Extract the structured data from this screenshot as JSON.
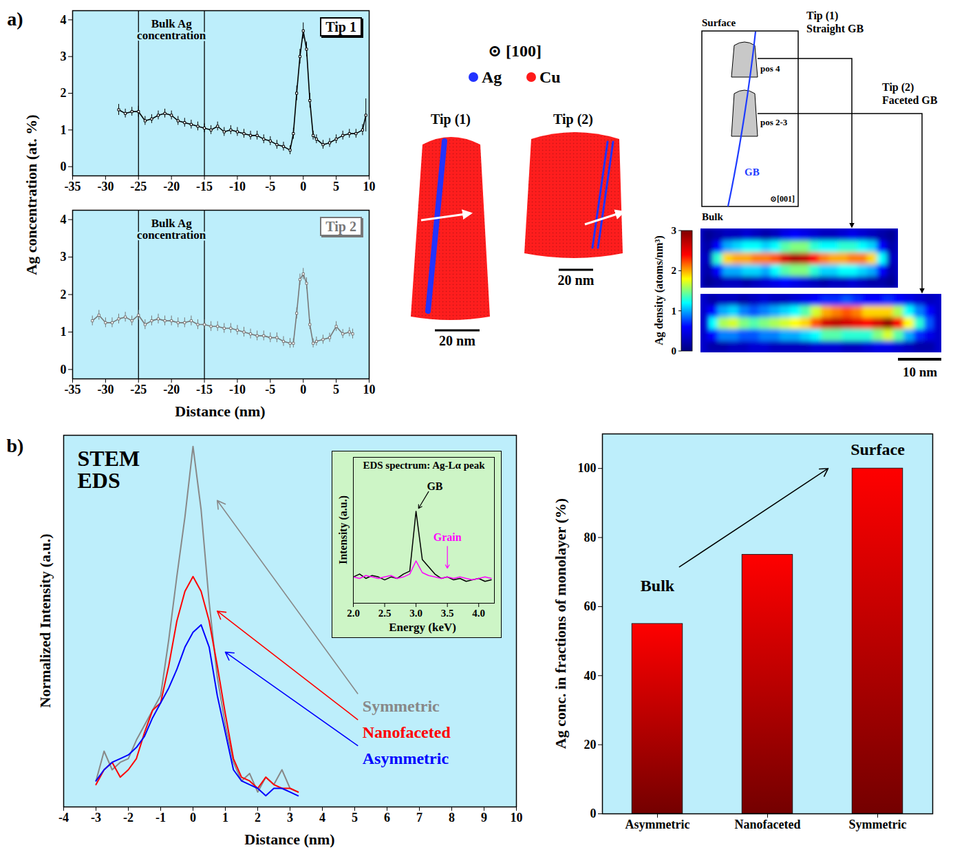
{
  "panel_labels": [
    "a)",
    "b)"
  ],
  "chart_data": [
    {
      "type": "line",
      "title": "Tip 1",
      "y_label": "Ag concentration (at. %)",
      "annotation": "Bulk Ag concentration",
      "reference_x": [
        -25,
        -15
      ],
      "color": "#000000",
      "marker": "square",
      "x": [
        -28,
        -27,
        -26,
        -25,
        -24,
        -23,
        -22,
        -21,
        -20,
        -19,
        -18,
        -17,
        -16,
        -15,
        -14,
        -13,
        -12,
        -11,
        -10,
        -9,
        -8,
        -7,
        -6,
        -5,
        -4,
        -3,
        -2,
        -1.5,
        -1,
        -0.5,
        0,
        0.5,
        1,
        1.5,
        2,
        3,
        4,
        5,
        6,
        7,
        8,
        9,
        9.5
      ],
      "values": [
        1.55,
        1.45,
        1.5,
        1.5,
        1.25,
        1.3,
        1.4,
        1.45,
        1.4,
        1.25,
        1.2,
        1.15,
        1.1,
        1.05,
        1.0,
        1.1,
        0.95,
        1.0,
        0.95,
        0.9,
        0.85,
        0.85,
        0.75,
        0.7,
        0.6,
        0.55,
        0.45,
        0.9,
        2.0,
        3.0,
        3.7,
        3.2,
        1.8,
        0.85,
        0.75,
        0.6,
        0.65,
        0.75,
        0.85,
        0.9,
        0.9,
        1.0,
        1.4
      ],
      "errors": [
        0.15,
        0.12,
        0.12,
        0.15,
        0.12,
        0.12,
        0.12,
        0.12,
        0.12,
        0.12,
        0.12,
        0.12,
        0.12,
        0.12,
        0.12,
        0.12,
        0.12,
        0.12,
        0.12,
        0.12,
        0.12,
        0.12,
        0.12,
        0.12,
        0.12,
        0.12,
        0.12,
        0.15,
        0.2,
        0.2,
        0.22,
        0.2,
        0.2,
        0.12,
        0.12,
        0.12,
        0.12,
        0.12,
        0.12,
        0.12,
        0.12,
        0.15,
        0.45
      ],
      "xlim": [
        -35,
        10
      ],
      "xticks": [
        -35,
        -30,
        -25,
        -20,
        -15,
        -10,
        -5,
        0,
        5,
        10
      ],
      "ylim": [
        -0.25,
        4.25
      ],
      "yticks": [
        0,
        1,
        2,
        3,
        4
      ]
    },
    {
      "type": "line",
      "title": "Tip 2",
      "x_label": "Distance (nm)",
      "annotation": "Bulk Ag concentration",
      "reference_x": [
        -25,
        -15
      ],
      "color": "#777777",
      "marker": "square",
      "x": [
        -32,
        -31,
        -30,
        -29,
        -28,
        -27,
        -26,
        -25,
        -24,
        -23,
        -22,
        -21,
        -20,
        -19,
        -18,
        -17,
        -16,
        -15,
        -14,
        -13,
        -12,
        -11,
        -10,
        -9,
        -8,
        -7,
        -6,
        -5,
        -4,
        -3,
        -2,
        -1.5,
        -1,
        -0.5,
        0,
        0.5,
        1,
        1.5,
        2,
        3,
        4,
        5,
        6,
        7,
        7.5
      ],
      "values": [
        1.3,
        1.45,
        1.25,
        1.25,
        1.35,
        1.4,
        1.3,
        1.45,
        1.2,
        1.3,
        1.35,
        1.3,
        1.3,
        1.25,
        1.25,
        1.3,
        1.2,
        1.2,
        1.15,
        1.15,
        1.1,
        1.1,
        1.05,
        1.0,
        0.95,
        0.9,
        0.9,
        0.85,
        0.85,
        0.75,
        0.7,
        0.7,
        1.5,
        2.4,
        2.55,
        2.3,
        1.2,
        0.7,
        0.75,
        0.8,
        0.85,
        1.15,
        0.95,
        1.0,
        0.95
      ],
      "errors": [
        0.13,
        0.13,
        0.13,
        0.13,
        0.13,
        0.13,
        0.13,
        0.13,
        0.13,
        0.13,
        0.13,
        0.13,
        0.13,
        0.13,
        0.13,
        0.13,
        0.13,
        0.13,
        0.13,
        0.13,
        0.13,
        0.13,
        0.13,
        0.13,
        0.13,
        0.13,
        0.13,
        0.13,
        0.13,
        0.13,
        0.13,
        0.12,
        0.15,
        0.15,
        0.15,
        0.15,
        0.13,
        0.12,
        0.12,
        0.12,
        0.12,
        0.13,
        0.12,
        0.12,
        0.13
      ],
      "xlim": [
        -35,
        10
      ],
      "xticks": [
        -35,
        -30,
        -25,
        -20,
        -15,
        -10,
        -5,
        0,
        5,
        10
      ],
      "ylim": [
        -0.25,
        4.25
      ],
      "yticks": [
        0,
        1,
        2,
        3,
        4
      ]
    },
    {
      "type": "heatmap",
      "tick_labels": false,
      "panels": [
        {
          "cells": [
            [
              0.1,
              0.2,
              0.3,
              0.3,
              0.4,
              0.3,
              0.2,
              0.3,
              0.5,
              0.6,
              0.5,
              0.4,
              0.3,
              0.3,
              0.4,
              0.5,
              0.4,
              0.3,
              0.2,
              0.1
            ],
            [
              0.2,
              0.6,
              1.0,
              1.1,
              1.2,
              1.2,
              1.1,
              1.2,
              1.4,
              1.5,
              1.5,
              1.3,
              1.2,
              1.2,
              1.3,
              1.3,
              1.2,
              1.1,
              0.6,
              0.2
            ],
            [
              0.3,
              1.3,
              1.9,
              2.0,
              2.0,
              2.1,
              2.1,
              2.2,
              2.6,
              2.8,
              2.7,
              2.4,
              2.1,
              2.0,
              2.0,
              2.1,
              2.1,
              1.9,
              1.2,
              0.3
            ],
            [
              0.2,
              0.6,
              1.0,
              1.0,
              1.1,
              1.1,
              1.0,
              1.2,
              1.4,
              1.5,
              1.5,
              1.3,
              1.1,
              1.1,
              1.2,
              1.2,
              1.1,
              1.0,
              0.6,
              0.2
            ],
            [
              0.1,
              0.2,
              0.3,
              0.3,
              0.2,
              0.3,
              0.4,
              0.5,
              0.6,
              0.5,
              0.4,
              0.3,
              0.2,
              0.3,
              0.3,
              0.4,
              0.3,
              0.2,
              0.2,
              0.1
            ]
          ]
        },
        {
          "cells": [
            [
              0.2,
              0.3,
              0.3,
              0.2,
              0.3,
              0.4,
              0.3,
              0.3,
              0.4,
              0.5,
              0.6,
              0.7,
              0.7,
              0.8,
              0.7,
              0.6,
              0.6,
              0.7,
              0.6,
              0.5,
              0.4,
              0.3
            ],
            [
              0.6,
              1.0,
              1.1,
              0.9,
              0.8,
              0.9,
              1.0,
              1.1,
              1.2,
              1.4,
              1.7,
              2.0,
              2.1,
              2.2,
              2.1,
              1.9,
              1.9,
              1.9,
              1.6,
              1.2,
              0.9,
              0.6
            ],
            [
              1.2,
              1.6,
              1.7,
              1.5,
              1.4,
              1.5,
              1.6,
              1.7,
              1.8,
              1.9,
              2.2,
              2.6,
              2.7,
              2.6,
              2.5,
              2.4,
              2.6,
              2.9,
              2.4,
              1.8,
              1.3,
              0.8
            ],
            [
              0.6,
              0.9,
              0.9,
              0.8,
              0.8,
              0.9,
              0.9,
              1.0,
              1.0,
              1.1,
              1.2,
              1.4,
              1.4,
              1.3,
              1.3,
              1.3,
              1.5,
              1.7,
              1.4,
              1.0,
              0.7,
              0.5
            ],
            [
              0.2,
              0.2,
              0.3,
              0.3,
              0.4,
              0.4,
              0.3,
              0.3,
              0.3,
              0.3,
              0.4,
              0.4,
              0.4,
              0.3,
              0.3,
              0.4,
              0.5,
              0.5,
              0.4,
              0.3,
              0.2,
              0.2
            ]
          ]
        }
      ],
      "colorbar": {
        "label": "Ag density (atoms/nm³)",
        "range": [
          0,
          3
        ],
        "ticks": [
          0,
          1,
          2,
          3
        ]
      },
      "scale_bar": "10 nm"
    },
    {
      "type": "line",
      "title": "STEM EDS",
      "x_label": "Distance (nm)",
      "y_label": "Normalized Intensity (a.u.)",
      "tick_labels": "x",
      "x": [
        -3,
        -2.75,
        -2.5,
        -2.25,
        -2,
        -1.75,
        -1.5,
        -1.25,
        -1,
        -0.75,
        -0.5,
        -0.25,
        0,
        0.25,
        0.5,
        0.75,
        1,
        1.25,
        1.5,
        1.75,
        2,
        2.25,
        2.5,
        2.75,
        3,
        3.25
      ],
      "series": [
        {
          "name": "Symmetric",
          "color": "#888888",
          "values": [
            0.07,
            0.15,
            0.1,
            0.12,
            0.13,
            0.18,
            0.22,
            0.26,
            0.3,
            0.45,
            0.62,
            0.78,
            0.97,
            0.8,
            0.55,
            0.35,
            0.22,
            0.12,
            0.07,
            0.09,
            0.04,
            0.08,
            0.06,
            0.1,
            0.05,
            0.04
          ]
        },
        {
          "name": "Nanofaceted",
          "color": "#ff0000",
          "values": [
            0.06,
            0.1,
            0.12,
            0.08,
            0.1,
            0.13,
            0.2,
            0.26,
            0.28,
            0.38,
            0.5,
            0.58,
            0.62,
            0.58,
            0.5,
            0.38,
            0.25,
            0.13,
            0.08,
            0.07,
            0.05,
            0.08,
            0.06,
            0.05,
            0.05,
            0.04
          ]
        },
        {
          "name": "Asymmetric",
          "color": "#0000ff",
          "values": [
            0.07,
            0.1,
            0.12,
            0.13,
            0.14,
            0.16,
            0.19,
            0.24,
            0.28,
            0.32,
            0.37,
            0.43,
            0.47,
            0.49,
            0.43,
            0.3,
            0.2,
            0.1,
            0.07,
            0.06,
            0.05,
            0.03,
            0.05,
            0.05,
            0.04,
            0.03
          ]
        }
      ],
      "xlim": [
        -4,
        10
      ],
      "xticks": [
        -4,
        -3,
        -2,
        -1,
        0,
        1,
        2,
        3,
        4,
        5,
        6,
        7,
        8,
        9,
        10
      ],
      "ylim": [
        0,
        1
      ]
    },
    {
      "type": "line",
      "title": "EDS spectrum: Ag-Lα peak",
      "x_label": "Energy (keV)",
      "y_label": "Intensity (a.u.)",
      "tick_labels": "x",
      "x": [
        2,
        2.1,
        2.2,
        2.3,
        2.4,
        2.5,
        2.6,
        2.7,
        2.8,
        2.9,
        3,
        3.1,
        3.2,
        3.3,
        3.4,
        3.5,
        3.6,
        3.7,
        3.8,
        3.9,
        4,
        4.1,
        4.2
      ],
      "series": [
        {
          "name": "GB",
          "color": "#000000",
          "values": [
            0.18,
            0.2,
            0.17,
            0.19,
            0.18,
            0.16,
            0.18,
            0.17,
            0.2,
            0.22,
            0.63,
            0.3,
            0.25,
            0.2,
            0.17,
            0.18,
            0.16,
            0.17,
            0.15,
            0.16,
            0.17,
            0.15,
            0.16
          ]
        },
        {
          "name": "Grain",
          "color": "#ff00ff",
          "values": [
            0.18,
            0.17,
            0.19,
            0.18,
            0.17,
            0.18,
            0.19,
            0.17,
            0.18,
            0.2,
            0.29,
            0.21,
            0.19,
            0.18,
            0.17,
            0.18,
            0.17,
            0.18,
            0.17,
            0.16,
            0.17,
            0.18,
            0.17
          ]
        }
      ],
      "xlim": [
        2,
        4.25
      ],
      "xticks": [
        {
          "value": 2,
          "label": "2.0"
        },
        {
          "value": 2.5,
          "label": "2.5"
        },
        {
          "value": 3,
          "label": "3.0"
        },
        {
          "value": 3.5,
          "label": "3.5"
        },
        {
          "value": 4,
          "label": "4.0"
        }
      ],
      "ylim": [
        0,
        1
      ]
    },
    {
      "type": "bar",
      "y_label": "Ag conc. in fractions of monolayer (%)",
      "annotations": [
        "Bulk",
        "Surface"
      ],
      "categories": [
        "Asymmetric",
        "Nanofaceted",
        "Symmetric"
      ],
      "values": [
        55,
        75,
        100
      ],
      "color": "#ff0000",
      "ylim": [
        0,
        110
      ],
      "yticks": [
        0,
        20,
        40,
        60,
        80,
        100
      ]
    }
  ],
  "diagram": {
    "reconstructions": {
      "direction": "⊙ [100]",
      "species": [
        {
          "label": "Ag",
          "color": "#2233ff"
        },
        {
          "label": "Cu",
          "color": "#ff1a1a"
        }
      ],
      "tips": [
        {
          "label": "Tip (1)",
          "scale_bar": "20 nm"
        },
        {
          "label": "Tip (2)",
          "scale_bar": "20 nm"
        }
      ]
    },
    "schematic": {
      "top": "Surface",
      "bottom": "Bulk",
      "boundary": "GB",
      "direction": "⊙[001]",
      "positions": [
        {
          "label": "pos 4",
          "target": [
            "Tip (1)",
            "Straight GB"
          ]
        },
        {
          "label": "pos 2-3",
          "target": [
            "Tip (2)",
            "Faceted GB"
          ]
        }
      ]
    }
  }
}
